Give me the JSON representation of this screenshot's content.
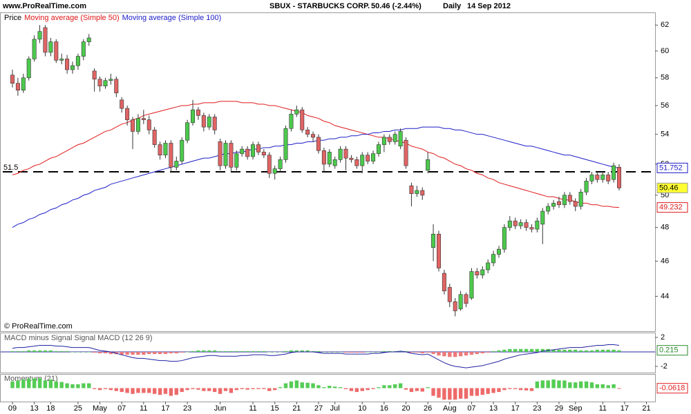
{
  "header": {
    "site": "www.ProRealTime.com",
    "title": "SBUX - STARBUCKS CORP.",
    "quote": "50.46 (-2.44%)",
    "period": "Daily",
    "date": "14 Sep 2012",
    "footer": "© ProRealTime.com"
  },
  "chart_data": [
    {
      "type": "candlestick",
      "price_label": "Price",
      "categories": [
        "09",
        null,
        null,
        null,
        "13",
        null,
        null,
        "18",
        null,
        null,
        null,
        null,
        "25",
        null,
        null,
        null,
        "May",
        null,
        null,
        null,
        "07",
        null,
        null,
        null,
        "11",
        null,
        null,
        null,
        "17",
        null,
        null,
        null,
        "23",
        null,
        null,
        null,
        null,
        null,
        "Jun",
        null,
        null,
        null,
        null,
        null,
        "11",
        null,
        null,
        null,
        "15",
        null,
        null,
        null,
        "21",
        null,
        null,
        null,
        "27",
        null,
        null,
        "Jul",
        null,
        null,
        null,
        null,
        "10",
        null,
        null,
        null,
        "16",
        null,
        null,
        null,
        "20",
        null,
        null,
        null,
        "26",
        null,
        null,
        null,
        "Aug",
        null,
        null,
        null,
        "07",
        null,
        null,
        null,
        "13",
        null,
        null,
        null,
        "17",
        null,
        null,
        null,
        "23",
        null,
        null,
        null,
        "29",
        null,
        null,
        "Sep",
        null,
        null,
        null,
        null,
        "11",
        null,
        null,
        null,
        "17",
        null,
        null,
        null,
        "21",
        null
      ],
      "open": [
        58.2,
        57.6,
        57.1,
        58.0,
        59.4,
        60.9,
        61.8,
        59.9,
        60.7,
        59.3,
        59.4,
        58.6,
        58.9,
        59.6,
        60.7,
        58.5,
        57.9,
        57.4,
        57.8,
        57.9,
        56.4,
        55.8,
        55.0,
        54.2,
        55.1,
        55.0,
        54.3,
        53.3,
        52.6,
        53.4,
        51.8,
        52.2,
        53.6,
        54.8,
        55.7,
        55.3,
        54.5,
        55.2,
        53.5,
        51.9,
        53.4,
        51.8,
        52.7,
        53.0,
        52.5,
        53.3,
        52.8,
        52.6,
        51.4,
        51.7,
        52.3,
        54.4,
        55.4,
        55.7,
        54.3,
        54.0,
        53.8,
        52.9,
        52.0,
        51.9,
        52.3,
        53.0,
        52.4,
        52.3,
        51.9,
        52.6,
        52.2,
        52.7,
        53.3,
        53.8,
        53.5,
        53.2,
        53.6,
        50.6,
        50.1,
        50.3,
        51.6,
        46.8,
        47.6,
        45.3,
        44.5,
        43.7,
        43.3,
        44.1,
        43.9,
        45.4,
        45.2,
        45.5,
        45.9,
        46.4,
        46.7,
        48.0,
        48.4,
        48.1,
        48.3,
        48.0,
        47.9,
        48.2,
        49.0,
        49.3,
        49.6,
        49.4,
        50.0,
        49.6,
        49.3,
        50.2,
        50.9,
        51.3,
        51.0,
        51.3,
        51.0,
        51.8,
        null,
        null,
        null,
        null,
        null,
        null
      ],
      "high": [
        58.6,
        58.0,
        58.3,
        59.6,
        61.2,
        62.0,
        62.0,
        61.0,
        60.9,
        59.8,
        59.7,
        59.2,
        59.8,
        60.9,
        61.3,
        58.7,
        58.1,
        58.0,
        58.3,
        58.1,
        56.6,
        56.0,
        55.2,
        55.4,
        55.7,
        55.3,
        54.5,
        53.5,
        53.6,
        53.6,
        52.5,
        53.8,
        55.0,
        56.4,
        55.9,
        55.5,
        55.4,
        55.4,
        53.7,
        53.6,
        53.6,
        52.9,
        53.2,
        53.2,
        53.5,
        53.5,
        53.0,
        52.8,
        51.9,
        52.5,
        54.6,
        55.7,
        56.0,
        55.9,
        54.5,
        54.2,
        54.0,
        53.1,
        53.0,
        52.5,
        53.2,
        53.2,
        52.6,
        52.5,
        52.8,
        52.8,
        52.9,
        53.5,
        54.0,
        54.0,
        54.2,
        54.4,
        53.8,
        50.8,
        50.6,
        50.5,
        52.8,
        48.2,
        47.8,
        45.5,
        44.7,
        43.9,
        44.3,
        44.2,
        45.6,
        45.6,
        45.7,
        46.1,
        46.6,
        46.9,
        48.2,
        48.7,
        48.6,
        48.5,
        48.5,
        48.2,
        48.6,
        49.2,
        49.5,
        49.7,
        49.9,
        50.2,
        50.2,
        49.8,
        50.4,
        51.1,
        51.5,
        51.5,
        51.5,
        51.5,
        52.1,
        52.0,
        null,
        null,
        null,
        null,
        null,
        null
      ],
      "low": [
        57.3,
        56.7,
        56.9,
        57.8,
        59.2,
        60.6,
        59.6,
        59.6,
        59.1,
        59.0,
        58.3,
        58.3,
        58.6,
        59.3,
        60.4,
        57.0,
        57.0,
        57.2,
        57.5,
        56.6,
        55.5,
        54.6,
        53.0,
        54.0,
        54.7,
        54.0,
        53.1,
        52.3,
        52.4,
        51.5,
        51.6,
        52.0,
        53.4,
        54.6,
        55.0,
        54.2,
        54.3,
        54.0,
        51.6,
        51.7,
        51.5,
        51.6,
        52.5,
        52.3,
        52.3,
        52.6,
        52.4,
        51.1,
        51.0,
        51.5,
        52.1,
        54.2,
        55.2,
        54.1,
        53.8,
        53.5,
        52.7,
        51.5,
        51.8,
        51.7,
        52.1,
        51.6,
        52.1,
        51.7,
        51.4,
        52.0,
        52.0,
        52.5,
        52.8,
        53.3,
        53.3,
        53.0,
        51.7,
        49.3,
        49.9,
        49.7,
        51.4,
        46.0,
        45.4,
        44.1,
        43.4,
        42.9,
        43.2,
        43.4,
        43.8,
        45.0,
        45.0,
        45.3,
        45.7,
        46.2,
        46.5,
        47.8,
        47.9,
        47.9,
        47.8,
        47.7,
        47.7,
        47.0,
        48.8,
        49.1,
        49.2,
        49.2,
        49.4,
        49.0,
        49.1,
        50.0,
        50.7,
        50.8,
        50.8,
        50.7,
        50.8,
        50.3,
        null,
        null,
        null,
        null,
        null,
        null
      ],
      "close": [
        57.6,
        57.1,
        58.0,
        59.4,
        60.9,
        61.5,
        59.9,
        60.7,
        59.3,
        59.4,
        58.6,
        58.9,
        59.6,
        60.7,
        61.0,
        57.9,
        57.4,
        57.8,
        57.9,
        56.9,
        55.8,
        55.0,
        54.2,
        55.1,
        55.0,
        54.3,
        53.3,
        52.6,
        53.4,
        51.8,
        52.2,
        53.6,
        54.8,
        55.7,
        55.3,
        54.5,
        55.2,
        54.3,
        51.9,
        53.4,
        51.8,
        52.7,
        53.0,
        52.5,
        53.3,
        52.8,
        52.6,
        51.4,
        51.7,
        52.3,
        54.4,
        55.4,
        55.7,
        54.3,
        54.0,
        53.8,
        52.9,
        52.0,
        52.8,
        52.3,
        53.0,
        52.4,
        52.3,
        51.9,
        52.6,
        52.2,
        52.7,
        53.3,
        53.8,
        53.5,
        54.0,
        54.2,
        51.9,
        50.1,
        50.3,
        50.0,
        52.3,
        47.6,
        45.6,
        44.3,
        43.7,
        43.2,
        44.1,
        43.6,
        45.4,
        45.2,
        45.5,
        45.9,
        46.4,
        46.7,
        48.0,
        48.4,
        48.1,
        48.3,
        48.0,
        47.9,
        48.4,
        49.0,
        49.3,
        49.5,
        49.4,
        50.0,
        49.6,
        49.3,
        50.2,
        50.9,
        51.3,
        51.0,
        51.3,
        50.9,
        51.9,
        50.46,
        null,
        null,
        null,
        null,
        null,
        null
      ],
      "up_color": "#4cc94c",
      "down_color": "#e06464",
      "close_badge_color": "#ffff33",
      "series": [
        {
          "name": "Moving average (Simple 50)",
          "color": "#e01818",
          "values": [
            51.3,
            51.4,
            51.6,
            51.7,
            51.9,
            52.0,
            52.2,
            52.4,
            52.5,
            52.7,
            52.9,
            53.1,
            53.3,
            53.4,
            53.6,
            53.8,
            54.0,
            54.2,
            54.3,
            54.5,
            54.7,
            54.8,
            55.0,
            55.1,
            55.3,
            55.4,
            55.5,
            55.6,
            55.7,
            55.8,
            55.9,
            56.0,
            56.0,
            56.1,
            56.1,
            56.2,
            56.2,
            56.2,
            56.3,
            56.3,
            56.3,
            56.3,
            56.2,
            56.2,
            56.2,
            56.1,
            56.1,
            56.0,
            56.0,
            55.9,
            55.8,
            55.7,
            55.6,
            55.5,
            55.3,
            55.2,
            55.1,
            54.9,
            54.8,
            54.6,
            54.5,
            54.4,
            54.3,
            54.2,
            54.1,
            54.0,
            53.9,
            53.8,
            53.8,
            53.7,
            53.6,
            53.5,
            53.4,
            53.2,
            53.1,
            53.0,
            52.8,
            52.7,
            52.5,
            52.4,
            52.2,
            52.0,
            51.9,
            51.7,
            51.6,
            51.4,
            51.3,
            51.1,
            51.0,
            50.8,
            50.7,
            50.6,
            50.5,
            50.4,
            50.3,
            50.2,
            50.1,
            50.0,
            49.9,
            49.9,
            49.8,
            49.7,
            49.7,
            49.6,
            49.5,
            49.5,
            49.4,
            49.4,
            49.3,
            49.3,
            49.25,
            49.232,
            null,
            null,
            null,
            null,
            null,
            null
          ]
        },
        {
          "name": "Moving average (Simple 100)",
          "color": "#1c1cc8",
          "values": [
            48.0,
            48.2,
            48.3,
            48.5,
            48.6,
            48.8,
            48.9,
            49.1,
            49.2,
            49.4,
            49.5,
            49.7,
            49.8,
            50.0,
            50.1,
            50.3,
            50.4,
            50.5,
            50.7,
            50.8,
            50.9,
            51.0,
            51.1,
            51.2,
            51.3,
            51.4,
            51.5,
            51.6,
            51.7,
            51.8,
            51.9,
            52.0,
            52.1,
            52.2,
            52.3,
            52.4,
            52.4,
            52.5,
            52.6,
            52.7,
            52.7,
            52.8,
            52.8,
            52.9,
            53.0,
            53.0,
            53.1,
            53.1,
            53.2,
            53.2,
            53.3,
            53.3,
            53.4,
            53.4,
            53.5,
            53.5,
            53.6,
            53.6,
            53.7,
            53.7,
            53.8,
            53.8,
            53.9,
            53.9,
            54.0,
            54.0,
            54.1,
            54.1,
            54.2,
            54.2,
            54.3,
            54.3,
            54.4,
            54.4,
            54.4,
            54.5,
            54.5,
            54.5,
            54.5,
            54.4,
            54.4,
            54.3,
            54.3,
            54.2,
            54.1,
            54.0,
            54.0,
            53.9,
            53.8,
            53.7,
            53.6,
            53.5,
            53.4,
            53.3,
            53.2,
            53.2,
            53.1,
            53.0,
            52.9,
            52.8,
            52.7,
            52.6,
            52.6,
            52.5,
            52.4,
            52.3,
            52.2,
            52.1,
            52.0,
            51.9,
            51.8,
            51.752,
            null,
            null,
            null,
            null,
            null,
            null
          ]
        }
      ],
      "ylim": [
        42.1,
        63.0
      ],
      "yticks": [
        44,
        46,
        48,
        50,
        52,
        54,
        56,
        58,
        60,
        62
      ],
      "ylog": true,
      "hline": 51.5
    },
    {
      "type": "macd",
      "title": "MACD minus Signal Signal MACD (12 26 9)",
      "macd_color": "#2020a0",
      "up_color": "#55cc55",
      "down_color": "#ee7a7a",
      "badge_color": "#2a8a2a",
      "macd": [
        0.5,
        0.6,
        0.6,
        0.7,
        0.8,
        0.9,
        0.9,
        0.9,
        0.8,
        0.8,
        0.7,
        0.6,
        0.6,
        0.6,
        0.6,
        0.4,
        0.2,
        0.1,
        0.0,
        -0.2,
        -0.4,
        -0.6,
        -0.8,
        -0.9,
        -0.9,
        -1.0,
        -1.1,
        -1.2,
        -1.2,
        -1.3,
        -1.3,
        -1.2,
        -1.0,
        -0.8,
        -0.7,
        -0.6,
        -0.5,
        -0.5,
        -0.6,
        -0.6,
        -0.6,
        -0.6,
        -0.5,
        -0.5,
        -0.4,
        -0.4,
        -0.4,
        -0.5,
        -0.5,
        -0.4,
        -0.3,
        -0.1,
        0.0,
        0.0,
        0.0,
        0.0,
        -0.1,
        -0.2,
        -0.2,
        -0.2,
        -0.2,
        -0.3,
        -0.3,
        -0.3,
        -0.3,
        -0.3,
        -0.2,
        -0.2,
        -0.1,
        0.0,
        0.0,
        0.1,
        0.0,
        -0.2,
        -0.3,
        -0.4,
        -0.3,
        -0.7,
        -1.1,
        -1.5,
        -1.8,
        -2.0,
        -2.1,
        -2.2,
        -2.1,
        -2.0,
        -1.9,
        -1.7,
        -1.5,
        -1.3,
        -1.0,
        -0.8,
        -0.6,
        -0.4,
        -0.3,
        -0.2,
        -0.1,
        0.1,
        0.2,
        0.3,
        0.4,
        0.5,
        0.6,
        0.6,
        0.6,
        0.7,
        0.8,
        0.9,
        0.9,
        1.0,
        1.0,
        0.9,
        null,
        null,
        null,
        null,
        null,
        null
      ],
      "hist": [
        0.1,
        0.1,
        0.1,
        0.2,
        0.2,
        0.2,
        0.2,
        0.2,
        0.1,
        0.1,
        0.1,
        0.0,
        0.0,
        0.0,
        0.0,
        -0.1,
        -0.2,
        -0.2,
        -0.3,
        -0.3,
        -0.4,
        -0.4,
        -0.4,
        -0.4,
        -0.4,
        -0.3,
        -0.3,
        -0.3,
        -0.3,
        -0.2,
        -0.2,
        -0.1,
        0.0,
        0.1,
        0.2,
        0.2,
        0.2,
        0.2,
        0.1,
        0.1,
        0.1,
        0.1,
        0.1,
        0.1,
        0.1,
        0.1,
        0.1,
        0.0,
        0.0,
        0.0,
        0.1,
        0.2,
        0.2,
        0.2,
        0.2,
        0.1,
        0.1,
        0.0,
        0.0,
        0.0,
        0.0,
        -0.1,
        -0.1,
        -0.1,
        -0.1,
        0.0,
        0.0,
        0.0,
        0.1,
        0.1,
        0.1,
        0.1,
        0.1,
        -0.1,
        -0.1,
        -0.2,
        -0.1,
        -0.3,
        -0.5,
        -0.6,
        -0.7,
        -0.7,
        -0.6,
        -0.5,
        -0.4,
        -0.3,
        -0.2,
        -0.1,
        0.1,
        0.2,
        0.3,
        0.4,
        0.4,
        0.4,
        0.4,
        0.4,
        0.4,
        0.4,
        0.4,
        0.3,
        0.3,
        0.3,
        0.3,
        0.3,
        0.2,
        0.2,
        0.2,
        0.3,
        0.3,
        0.3,
        0.3,
        0.215,
        null,
        null,
        null,
        null,
        null,
        null
      ],
      "ylim": [
        -2.86,
        2.57
      ],
      "yticks": [
        -2,
        2
      ]
    },
    {
      "type": "momentum",
      "title": "Momentum (21)",
      "up_color": "#55cc55",
      "down_color": "#ee6a6a",
      "badge_color": "#e02020",
      "values": [
        3.5,
        4.0,
        4.5,
        5.0,
        5.0,
        5.2,
        4.0,
        4.5,
        3.5,
        3.2,
        2.5,
        2.0,
        2.0,
        2.5,
        2.5,
        -0.5,
        -1.0,
        -0.5,
        -1.0,
        -1.5,
        -2.0,
        -2.5,
        -3.0,
        -2.5,
        -2.5,
        -2.5,
        -3.0,
        -3.5,
        -3.0,
        -4.0,
        -3.5,
        -2.0,
        -1.0,
        -0.5,
        -0.8,
        -1.5,
        -1.5,
        -2.0,
        -3.0,
        -1.5,
        -2.5,
        -1.0,
        -0.5,
        -0.8,
        -0.5,
        -0.5,
        -0.5,
        -1.5,
        -1.0,
        0.5,
        2.5,
        3.5,
        4.0,
        3.0,
        2.8,
        2.5,
        1.5,
        0.5,
        1.2,
        0.8,
        0.5,
        -0.5,
        -1.5,
        -2.0,
        -1.5,
        -1.0,
        -0.5,
        0.5,
        1.5,
        1.5,
        2.0,
        2.5,
        -0.8,
        -2.0,
        -1.5,
        -1.8,
        0.5,
        -4.0,
        -5.0,
        -6.0,
        -6.0,
        -6.0,
        -5.5,
        -5.5,
        -4.0,
        -4.0,
        -3.5,
        -3.0,
        -2.5,
        -2.0,
        -1.0,
        -0.5,
        -0.5,
        -1.0,
        -1.2,
        -1.5,
        3.5,
        4.0,
        4.0,
        4.5,
        4.0,
        4.0,
        3.0,
        3.0,
        3.5,
        3.5,
        3.0,
        2.0,
        2.0,
        1.5,
        2.0,
        -0.0618,
        null,
        null,
        null,
        null,
        null,
        null
      ],
      "ylim": [
        -7,
        7
      ]
    }
  ]
}
